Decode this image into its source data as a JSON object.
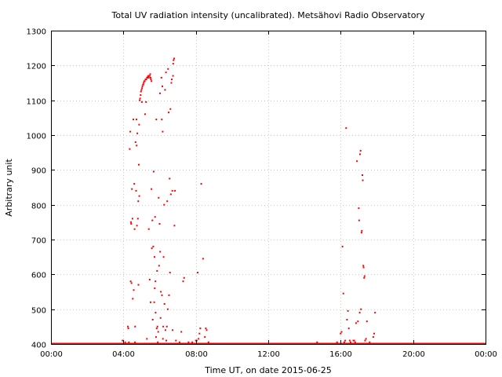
{
  "chart_data": {
    "type": "scatter",
    "title": "Total UV radiation intensity (uncalibrated). Metsähovi Radio Observatory",
    "xlabel": "Time UT, on date 2015-06-25",
    "ylabel": "Arbitrary unit",
    "x_unit": "hours UT",
    "xlim": [
      0,
      24
    ],
    "ylim": [
      400,
      1300
    ],
    "x_ticks": [
      0,
      4,
      8,
      12,
      16,
      20,
      24
    ],
    "x_tick_labels": [
      "00:00",
      "04:00",
      "08:00",
      "12:00",
      "16:00",
      "20:00",
      "00:00"
    ],
    "y_ticks": [
      400,
      500,
      600,
      700,
      800,
      900,
      1000,
      1100,
      1200,
      1300
    ],
    "y_tick_labels": [
      "400",
      "500",
      "600",
      "700",
      "800",
      "900",
      "1000",
      "1100",
      "1200",
      "1300"
    ],
    "grid": true,
    "legend": "none",
    "color": "#ff0000",
    "baseline": {
      "value": 400,
      "x_range": [
        0,
        24
      ]
    },
    "points": [
      [
        3.95,
        410
      ],
      [
        4.1,
        405
      ],
      [
        4.25,
        450
      ],
      [
        4.27,
        445
      ],
      [
        4.3,
        405
      ],
      [
        4.35,
        960
      ],
      [
        4.38,
        1010
      ],
      [
        4.4,
        580
      ],
      [
        4.42,
        750
      ],
      [
        4.43,
        745
      ],
      [
        4.45,
        575
      ],
      [
        4.47,
        845
      ],
      [
        4.5,
        760
      ],
      [
        4.52,
        530
      ],
      [
        4.55,
        1045
      ],
      [
        4.57,
        555
      ],
      [
        4.6,
        860
      ],
      [
        4.62,
        730
      ],
      [
        4.64,
        405
      ],
      [
        4.65,
        450
      ],
      [
        4.67,
        980
      ],
      [
        4.7,
        840
      ],
      [
        4.72,
        1045
      ],
      [
        4.73,
        970
      ],
      [
        4.75,
        740
      ],
      [
        4.77,
        1005
      ],
      [
        4.8,
        760
      ],
      [
        4.82,
        810
      ],
      [
        4.83,
        570
      ],
      [
        4.85,
        915
      ],
      [
        4.87,
        1030
      ],
      [
        4.88,
        825
      ],
      [
        4.9,
        1100
      ],
      [
        4.92,
        1105
      ],
      [
        4.95,
        1115
      ],
      [
        4.97,
        1125
      ],
      [
        5.0,
        1130
      ],
      [
        5.02,
        1095
      ],
      [
        5.03,
        1135
      ],
      [
        5.05,
        1140
      ],
      [
        5.08,
        1145
      ],
      [
        5.1,
        1145
      ],
      [
        5.12,
        1150
      ],
      [
        5.15,
        1155
      ],
      [
        5.18,
        1155
      ],
      [
        5.2,
        1060
      ],
      [
        5.22,
        1160
      ],
      [
        5.25,
        1095
      ],
      [
        5.27,
        1160
      ],
      [
        5.3,
        1165
      ],
      [
        5.33,
        1165
      ],
      [
        5.35,
        1168
      ],
      [
        5.38,
        1170
      ],
      [
        5.4,
        1165
      ],
      [
        5.43,
        1170
      ],
      [
        5.45,
        1170
      ],
      [
        5.48,
        1175
      ],
      [
        5.5,
        1165
      ],
      [
        5.52,
        1160
      ],
      [
        5.55,
        1155
      ],
      [
        5.3,
        415
      ],
      [
        5.4,
        730
      ],
      [
        5.45,
        585
      ],
      [
        5.5,
        520
      ],
      [
        5.55,
        845
      ],
      [
        5.57,
        675
      ],
      [
        5.6,
        755
      ],
      [
        5.62,
        470
      ],
      [
        5.65,
        680
      ],
      [
        5.67,
        895
      ],
      [
        5.7,
        520
      ],
      [
        5.72,
        650
      ],
      [
        5.73,
        560
      ],
      [
        5.75,
        765
      ],
      [
        5.77,
        580
      ],
      [
        5.78,
        490
      ],
      [
        5.8,
        420
      ],
      [
        5.82,
        1045
      ],
      [
        5.84,
        445
      ],
      [
        5.86,
        610
      ],
      [
        5.88,
        450
      ],
      [
        5.9,
        405
      ],
      [
        5.92,
        435
      ],
      [
        5.95,
        820
      ],
      [
        5.97,
        625
      ],
      [
        6.0,
        745
      ],
      [
        6.02,
        1120
      ],
      [
        6.03,
        665
      ],
      [
        6.05,
        475
      ],
      [
        6.07,
        550
      ],
      [
        6.08,
        400
      ],
      [
        6.1,
        1165
      ],
      [
        6.12,
        1045
      ],
      [
        6.13,
        540
      ],
      [
        6.15,
        1140
      ],
      [
        6.17,
        1010
      ],
      [
        6.18,
        415
      ],
      [
        6.2,
        450
      ],
      [
        6.22,
        650
      ],
      [
        6.25,
        800
      ],
      [
        6.27,
        515
      ],
      [
        6.3,
        1130
      ],
      [
        6.32,
        440
      ],
      [
        6.35,
        1180
      ],
      [
        6.37,
        410
      ],
      [
        6.4,
        450
      ],
      [
        6.42,
        810
      ],
      [
        6.45,
        500
      ],
      [
        6.47,
        1190
      ],
      [
        6.5,
        1065
      ],
      [
        6.52,
        540
      ],
      [
        6.55,
        875
      ],
      [
        6.57,
        605
      ],
      [
        6.6,
        1075
      ],
      [
        6.62,
        830
      ],
      [
        6.65,
        1150
      ],
      [
        6.67,
        1160
      ],
      [
        6.7,
        840
      ],
      [
        6.72,
        440
      ],
      [
        6.74,
        1170
      ],
      [
        6.75,
        1205
      ],
      [
        6.77,
        1215
      ],
      [
        6.8,
        1220
      ],
      [
        6.82,
        740
      ],
      [
        6.85,
        840
      ],
      [
        6.9,
        410
      ],
      [
        7.0,
        400
      ],
      [
        7.1,
        405
      ],
      [
        7.2,
        435
      ],
      [
        7.3,
        580
      ],
      [
        7.35,
        590
      ],
      [
        7.5,
        400
      ],
      [
        7.6,
        405
      ],
      [
        7.7,
        400
      ],
      [
        7.8,
        405
      ],
      [
        7.9,
        400
      ],
      [
        8.0,
        410
      ],
      [
        8.05,
        410
      ],
      [
        8.1,
        605
      ],
      [
        8.15,
        415
      ],
      [
        8.2,
        430
      ],
      [
        8.25,
        445
      ],
      [
        8.3,
        860
      ],
      [
        8.4,
        645
      ],
      [
        8.5,
        420
      ],
      [
        8.55,
        445
      ],
      [
        8.6,
        440
      ],
      [
        8.7,
        405
      ],
      [
        14.7,
        405
      ],
      [
        15.6,
        400
      ],
      [
        15.8,
        405
      ],
      [
        16.0,
        430
      ],
      [
        16.05,
        435
      ],
      [
        16.1,
        680
      ],
      [
        16.15,
        545
      ],
      [
        16.2,
        405
      ],
      [
        16.25,
        410
      ],
      [
        16.3,
        1020
      ],
      [
        16.35,
        470
      ],
      [
        16.4,
        495
      ],
      [
        16.45,
        445
      ],
      [
        16.5,
        410
      ],
      [
        16.55,
        405
      ],
      [
        16.6,
        400
      ],
      [
        16.7,
        410
      ],
      [
        16.75,
        410
      ],
      [
        16.8,
        405
      ],
      [
        16.85,
        460
      ],
      [
        16.9,
        925
      ],
      [
        16.95,
        465
      ],
      [
        17.0,
        790
      ],
      [
        17.02,
        755
      ],
      [
        17.05,
        490
      ],
      [
        17.07,
        945
      ],
      [
        17.1,
        955
      ],
      [
        17.12,
        500
      ],
      [
        17.15,
        720
      ],
      [
        17.17,
        725
      ],
      [
        17.2,
        885
      ],
      [
        17.22,
        870
      ],
      [
        17.25,
        625
      ],
      [
        17.27,
        620
      ],
      [
        17.3,
        590
      ],
      [
        17.32,
        595
      ],
      [
        17.35,
        410
      ],
      [
        17.4,
        415
      ],
      [
        17.45,
        465
      ],
      [
        17.5,
        400
      ],
      [
        17.6,
        405
      ],
      [
        17.7,
        400
      ],
      [
        17.8,
        420
      ],
      [
        17.85,
        430
      ],
      [
        17.9,
        490
      ]
    ]
  }
}
